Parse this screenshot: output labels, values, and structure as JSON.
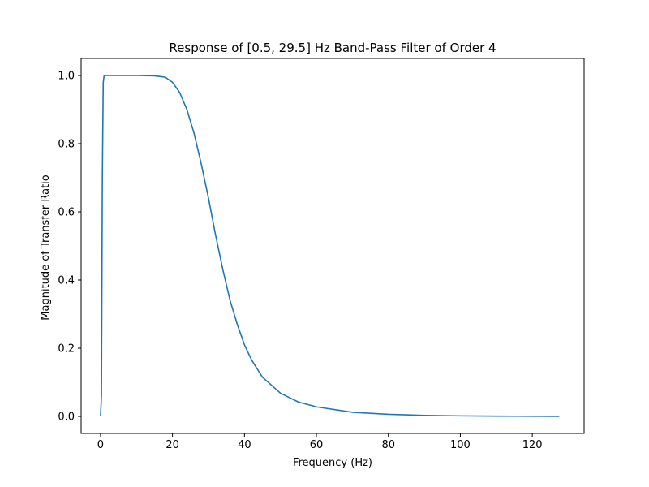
{
  "chart_data": {
    "type": "line",
    "title": "Response of [0.5, 29.5] Hz Band-Pass Filter of Order 4",
    "xlabel": "Frequency (Hz)",
    "ylabel": "Magnitude of Transfer Ratio",
    "xlim": [
      -5.4,
      134.4
    ],
    "ylim": [
      -0.05,
      1.05
    ],
    "xticks": [
      0,
      20,
      40,
      60,
      80,
      100,
      120
    ],
    "yticks": [
      0.0,
      0.2,
      0.4,
      0.6,
      0.8,
      1.0
    ],
    "xtick_labels": [
      "0",
      "20",
      "40",
      "60",
      "80",
      "100",
      "120"
    ],
    "ytick_labels": [
      "0.0",
      "0.2",
      "0.4",
      "0.6",
      "0.8",
      "1.0"
    ],
    "grid": false,
    "series": [
      {
        "color": "#1f77b4",
        "x": [
          0,
          0.25,
          0.5,
          0.75,
          1,
          1.5,
          2,
          5,
          10,
          15,
          18,
          20,
          22,
          24,
          26,
          28,
          30,
          32,
          34,
          36,
          38,
          40,
          42,
          45,
          50,
          55,
          60,
          70,
          80,
          90,
          100,
          110,
          120,
          127.5
        ],
        "y": [
          0.0,
          0.06,
          0.7,
          0.98,
          1.0,
          1.0,
          1.0,
          1.0,
          1.0,
          0.999,
          0.995,
          0.98,
          0.95,
          0.9,
          0.83,
          0.74,
          0.64,
          0.53,
          0.43,
          0.34,
          0.27,
          0.21,
          0.165,
          0.115,
          0.068,
          0.042,
          0.028,
          0.012,
          0.006,
          0.003,
          0.0015,
          0.0008,
          0.0004,
          0.0002
        ]
      }
    ]
  }
}
